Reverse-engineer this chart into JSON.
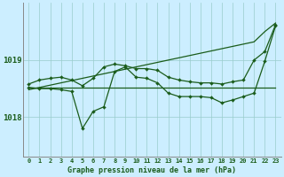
{
  "title": "Graphe pression niveau de la mer (hPa)",
  "background_color": "#cceeff",
  "grid_color": "#99cccc",
  "line_color": "#1a5c1a",
  "yticks": [
    1018,
    1019
  ],
  "ylim": [
    1017.3,
    1020.0
  ],
  "xlim": [
    -0.5,
    23.5
  ],
  "series": {
    "line_diagonal": [
      1018.48,
      1018.52,
      1018.56,
      1018.6,
      1018.64,
      1018.68,
      1018.72,
      1018.76,
      1018.8,
      1018.84,
      1018.88,
      1018.92,
      1018.96,
      1019.0,
      1019.04,
      1019.08,
      1019.12,
      1019.16,
      1019.2,
      1019.24,
      1019.28,
      1019.32,
      1019.5,
      1019.65
    ],
    "line_flat": [
      1018.52,
      1018.52,
      1018.52,
      1018.52,
      1018.52,
      1018.52,
      1018.52,
      1018.52,
      1018.52,
      1018.52,
      1018.52,
      1018.52,
      1018.52,
      1018.52,
      1018.52,
      1018.52,
      1018.52,
      1018.52,
      1018.52,
      1018.52,
      1018.52,
      1018.52,
      1018.52,
      1018.52
    ],
    "line_wavy_high": [
      1018.58,
      1018.65,
      1018.68,
      1018.7,
      1018.65,
      1018.55,
      1018.68,
      1018.88,
      1018.93,
      1018.9,
      1018.85,
      1018.85,
      1018.82,
      1018.7,
      1018.65,
      1018.62,
      1018.6,
      1018.6,
      1018.58,
      1018.62,
      1018.65,
      1019.0,
      1019.15,
      1019.62
    ],
    "line_wavy_low": [
      1018.52,
      1018.5,
      1018.5,
      1018.48,
      1018.45,
      1017.8,
      1018.1,
      1018.18,
      1018.8,
      1018.88,
      1018.7,
      1018.68,
      1018.6,
      1018.42,
      1018.36,
      1018.36,
      1018.36,
      1018.34,
      1018.25,
      1018.3,
      1018.36,
      1018.42,
      1018.98,
      1019.6
    ]
  }
}
